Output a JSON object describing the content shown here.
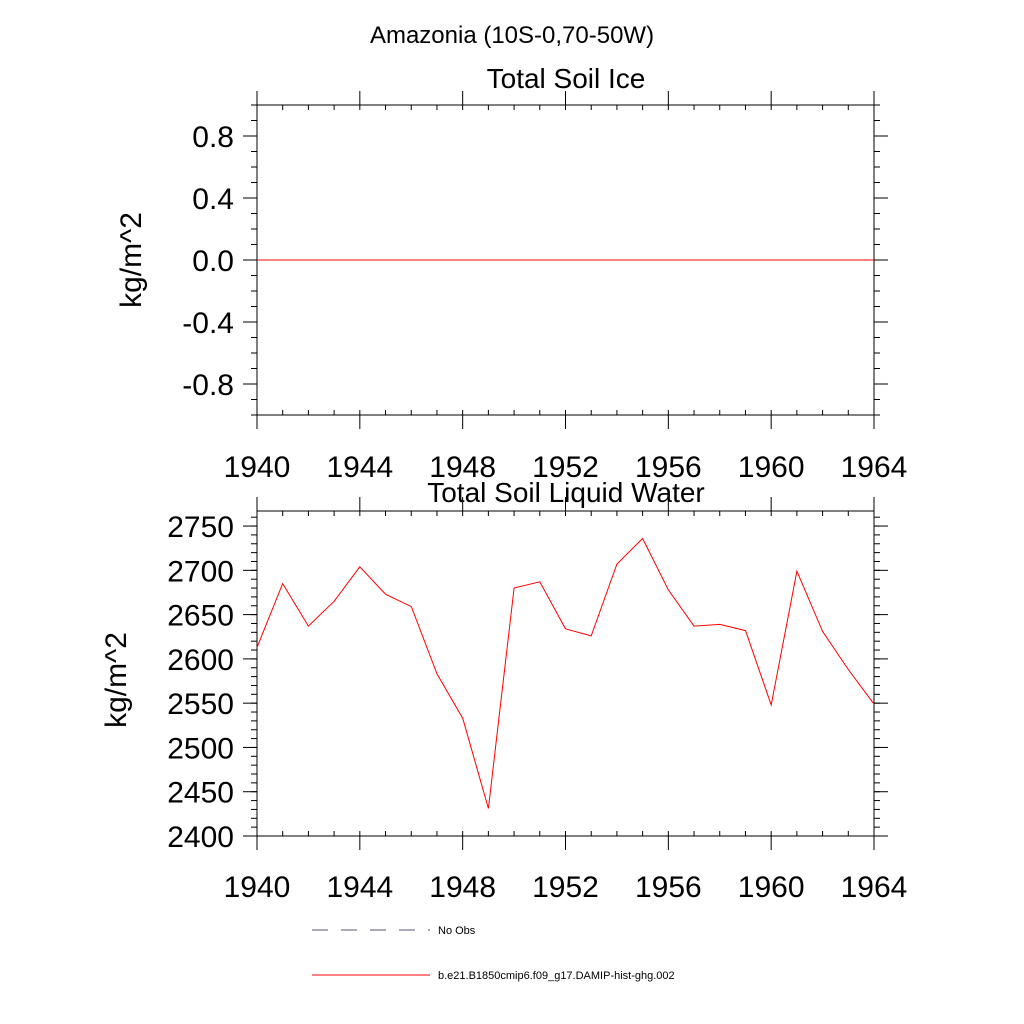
{
  "figure_title": "Amazonia (10S-0,70-50W)",
  "chart_data": [
    {
      "type": "line",
      "title": "Total Soil Ice",
      "xlabel": "",
      "ylabel": "kg/m^2",
      "xlim": [
        1940,
        1964
      ],
      "ylim": [
        -1.0,
        1.0
      ],
      "x_ticks": [
        "1940",
        "1944",
        "1948",
        "1952",
        "1956",
        "1960",
        "1964"
      ],
      "y_ticks": [
        "-0.8",
        "-0.4",
        "0.0",
        "0.4",
        "0.8"
      ],
      "grid": false,
      "series": [
        {
          "name": "b.e21.B1850cmip6.f09_g17.DAMIP-hist-ghg.002",
          "color": "#ff0000",
          "x": [
            1940,
            1941,
            1942,
            1943,
            1944,
            1945,
            1946,
            1947,
            1948,
            1949,
            1950,
            1951,
            1952,
            1953,
            1954,
            1955,
            1956,
            1957,
            1958,
            1959,
            1960,
            1961,
            1962,
            1963,
            1964
          ],
          "values": [
            0,
            0,
            0,
            0,
            0,
            0,
            0,
            0,
            0,
            0,
            0,
            0,
            0,
            0,
            0,
            0,
            0,
            0,
            0,
            0,
            0,
            0,
            0,
            0,
            0
          ]
        }
      ]
    },
    {
      "type": "line",
      "title": "Total Soil Liquid Water",
      "xlabel": "",
      "ylabel": "kg/m^2",
      "xlim": [
        1940,
        1964
      ],
      "ylim": [
        2400,
        2767
      ],
      "x_ticks": [
        "1940",
        "1944",
        "1948",
        "1952",
        "1956",
        "1960",
        "1964"
      ],
      "y_ticks": [
        "2400",
        "2450",
        "2500",
        "2550",
        "2600",
        "2650",
        "2700",
        "2750"
      ],
      "grid": false,
      "series": [
        {
          "name": "b.e21.B1850cmip6.f09_g17.DAMIP-hist-ghg.002",
          "color": "#ff0000",
          "x": [
            1940,
            1941,
            1942,
            1943,
            1944,
            1945,
            1946,
            1947,
            1948,
            1949,
            1950,
            1951,
            1952,
            1953,
            1954,
            1955,
            1956,
            1957,
            1958,
            1959,
            1960,
            1961,
            1962,
            1963,
            1964
          ],
          "values": [
            2613,
            2685,
            2637,
            2665,
            2704,
            2673,
            2659,
            2583,
            2533,
            2431,
            2680,
            2687,
            2634,
            2626,
            2707,
            2736,
            2678,
            2637,
            2639,
            2632,
            2548,
            2699,
            2631,
            2588,
            2549
          ]
        }
      ]
    }
  ],
  "legend": {
    "placement": "bottom",
    "items": [
      {
        "label": "No Obs",
        "style": "dashed",
        "color": "#555577"
      },
      {
        "label": "b.e21.B1850cmip6.f09_g17.DAMIP-hist-ghg.002",
        "style": "solid",
        "color": "#ff0000"
      }
    ]
  }
}
